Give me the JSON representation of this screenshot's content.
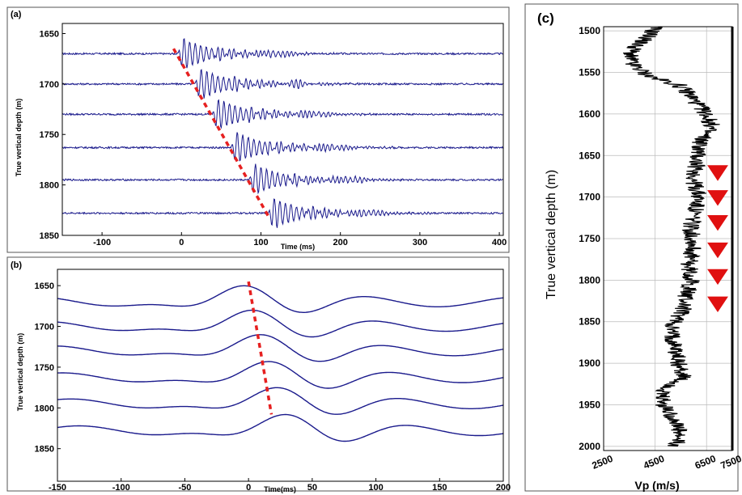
{
  "chart_data": [
    {
      "panel": "(a)",
      "type": "line",
      "title": "",
      "xlabel": "Time (ms)",
      "ylabel": "True vertical depth (m)",
      "xlim": [
        -150,
        405
      ],
      "ylim": [
        1850,
        1640
      ],
      "x_ticks": [
        -100,
        0,
        100,
        200,
        300,
        400
      ],
      "y_ticks": [
        1650,
        1700,
        1750,
        1800,
        1850
      ],
      "trace_depths": [
        1670,
        1700,
        1730,
        1763,
        1795,
        1828
      ],
      "first_arrival_pick": {
        "x": [
          -10,
          110
        ],
        "y": [
          1665,
          1832
        ]
      }
    },
    {
      "panel": "(b)",
      "type": "line",
      "title": "",
      "xlabel": "Time(ms)",
      "ylabel": "True vertical depth (m)",
      "xlim": [
        -150,
        200
      ],
      "ylim": [
        1890,
        1630
      ],
      "x_ticks": [
        -150,
        -100,
        -50,
        0,
        50,
        100,
        150,
        200
      ],
      "y_ticks": [
        1650,
        1700,
        1750,
        1800,
        1850
      ],
      "trace_depths": [
        1670,
        1700,
        1730,
        1763,
        1795,
        1828
      ],
      "peak_pick": {
        "x": [
          0,
          18
        ],
        "y": [
          1645,
          1808
        ]
      }
    },
    {
      "panel": "(c)",
      "type": "line",
      "title": "",
      "xlabel": "Vp (m/s)",
      "ylabel": "True vertical depth (m)",
      "xlim": [
        2500,
        7500
      ],
      "ylim": [
        2005,
        1495
      ],
      "x_ticks": [
        2500,
        4500,
        6500,
        7500
      ],
      "y_ticks": [
        1500,
        1550,
        1600,
        1650,
        1700,
        1750,
        1800,
        1850,
        1900,
        1950,
        2000
      ],
      "grid": true,
      "receiver_depths": [
        1670,
        1700,
        1730,
        1763,
        1795,
        1828
      ],
      "vp_profile": {
        "depth": [
          1495,
          1505,
          1520,
          1530,
          1540,
          1555,
          1565,
          1575,
          1590,
          1600,
          1615,
          1625,
          1640,
          1660,
          1680,
          1700,
          1720,
          1740,
          1760,
          1780,
          1800,
          1820,
          1835,
          1850,
          1860,
          1880,
          1900,
          1915,
          1925,
          1935,
          1950,
          1965,
          1980,
          2000
        ],
        "vp": [
          4500,
          4300,
          3700,
          3500,
          3600,
          4300,
          5400,
          5800,
          6200,
          6500,
          6700,
          6400,
          6200,
          6100,
          6000,
          6200,
          6000,
          5900,
          6000,
          5800,
          5900,
          5700,
          5600,
          5300,
          5100,
          5300,
          5400,
          5600,
          5200,
          4700,
          4800,
          5200,
          5400,
          5300
        ]
      }
    }
  ]
}
